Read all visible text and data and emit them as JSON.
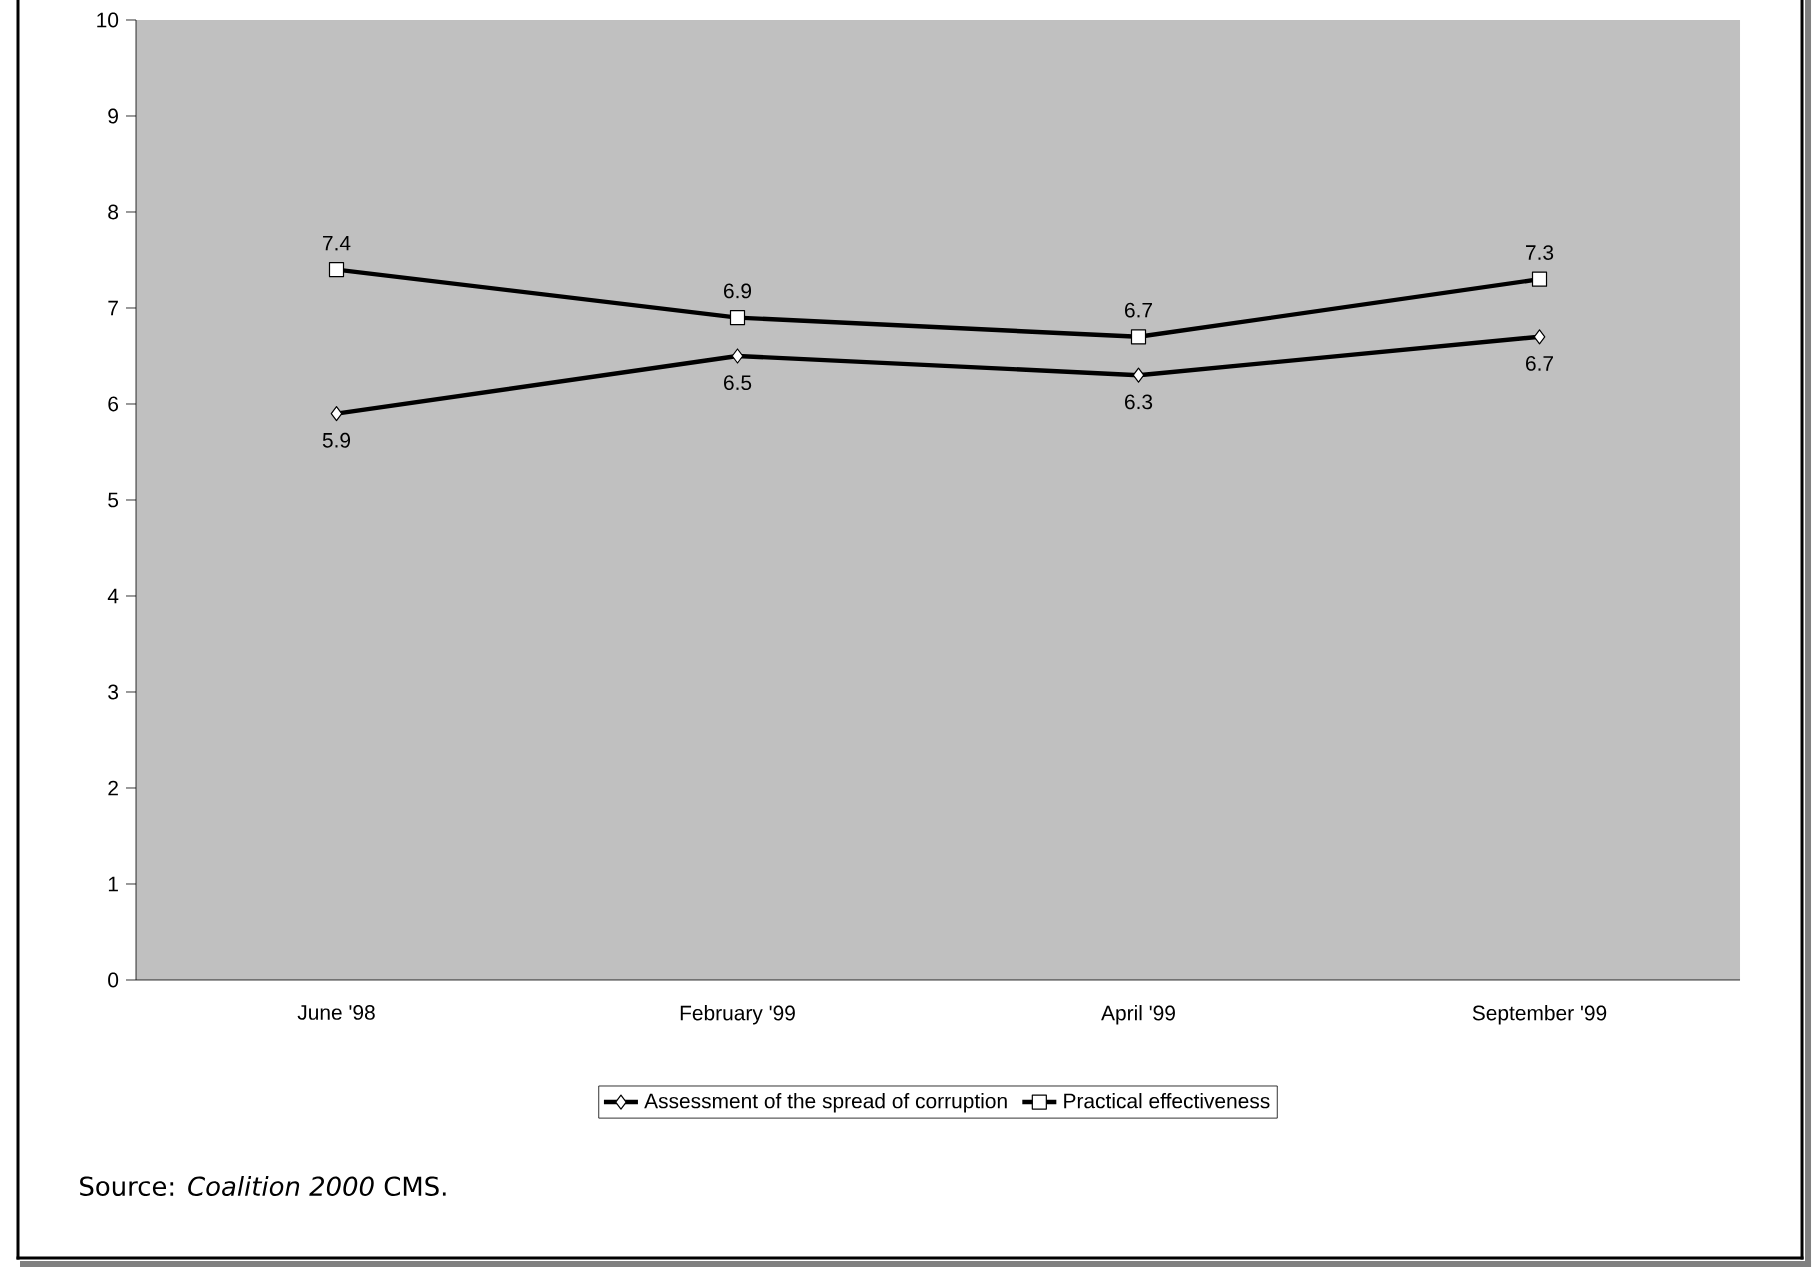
{
  "chart_data": {
    "type": "line",
    "categories": [
      "June '98",
      "February '99",
      "April '99",
      "September '99"
    ],
    "series": [
      {
        "name": "Assessment of the spread of corruption",
        "color": "#000000",
        "marker": "diamond",
        "values": [
          5.9,
          6.5,
          6.3,
          6.7
        ]
      },
      {
        "name": "Practical effectiveness",
        "color": "#000000",
        "marker": "square",
        "values": [
          7.4,
          6.9,
          6.7,
          7.3
        ]
      }
    ],
    "ylim": [
      0,
      10
    ],
    "yticks": [
      0,
      1,
      2,
      3,
      4,
      5,
      6,
      7,
      8,
      9,
      10
    ],
    "data_labels": true,
    "legend": "bottom",
    "grid": false,
    "line_style": "solid",
    "annotations": [
      "Source: *Coalition 2000* CMS."
    ]
  }
}
